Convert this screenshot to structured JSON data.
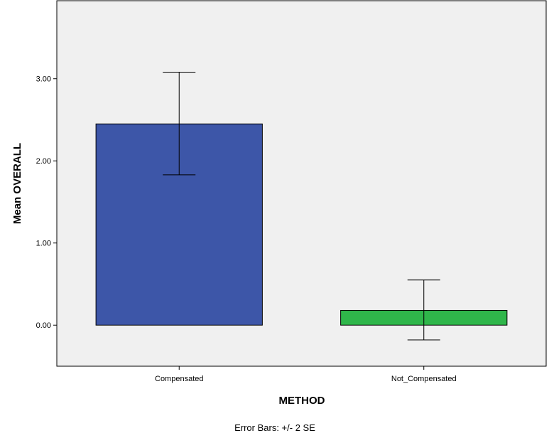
{
  "chart_data": {
    "type": "bar",
    "categories": [
      "Compensated",
      "Not_Compensated"
    ],
    "values": [
      2.45,
      0.18
    ],
    "error_bars": {
      "label": "Error Bars: +/- 2 SE",
      "lower": [
        1.83,
        -0.18
      ],
      "upper": [
        3.08,
        0.55
      ]
    },
    "xlabel": "METHOD",
    "ylabel": "Mean OVERALL",
    "ylim": [
      -0.5,
      3.95
    ],
    "yticks": [
      0.0,
      1.0,
      2.0,
      3.0
    ],
    "ytick_labels": [
      "0.00",
      "1.00",
      "2.00",
      "3.00"
    ],
    "grid": false,
    "legend": "none",
    "colors": {
      "bars": [
        "#3d56a8",
        "#2fb64a"
      ],
      "plot_background": "#f0f0f0",
      "axis": "#000000",
      "error_bar": "#000000"
    }
  }
}
